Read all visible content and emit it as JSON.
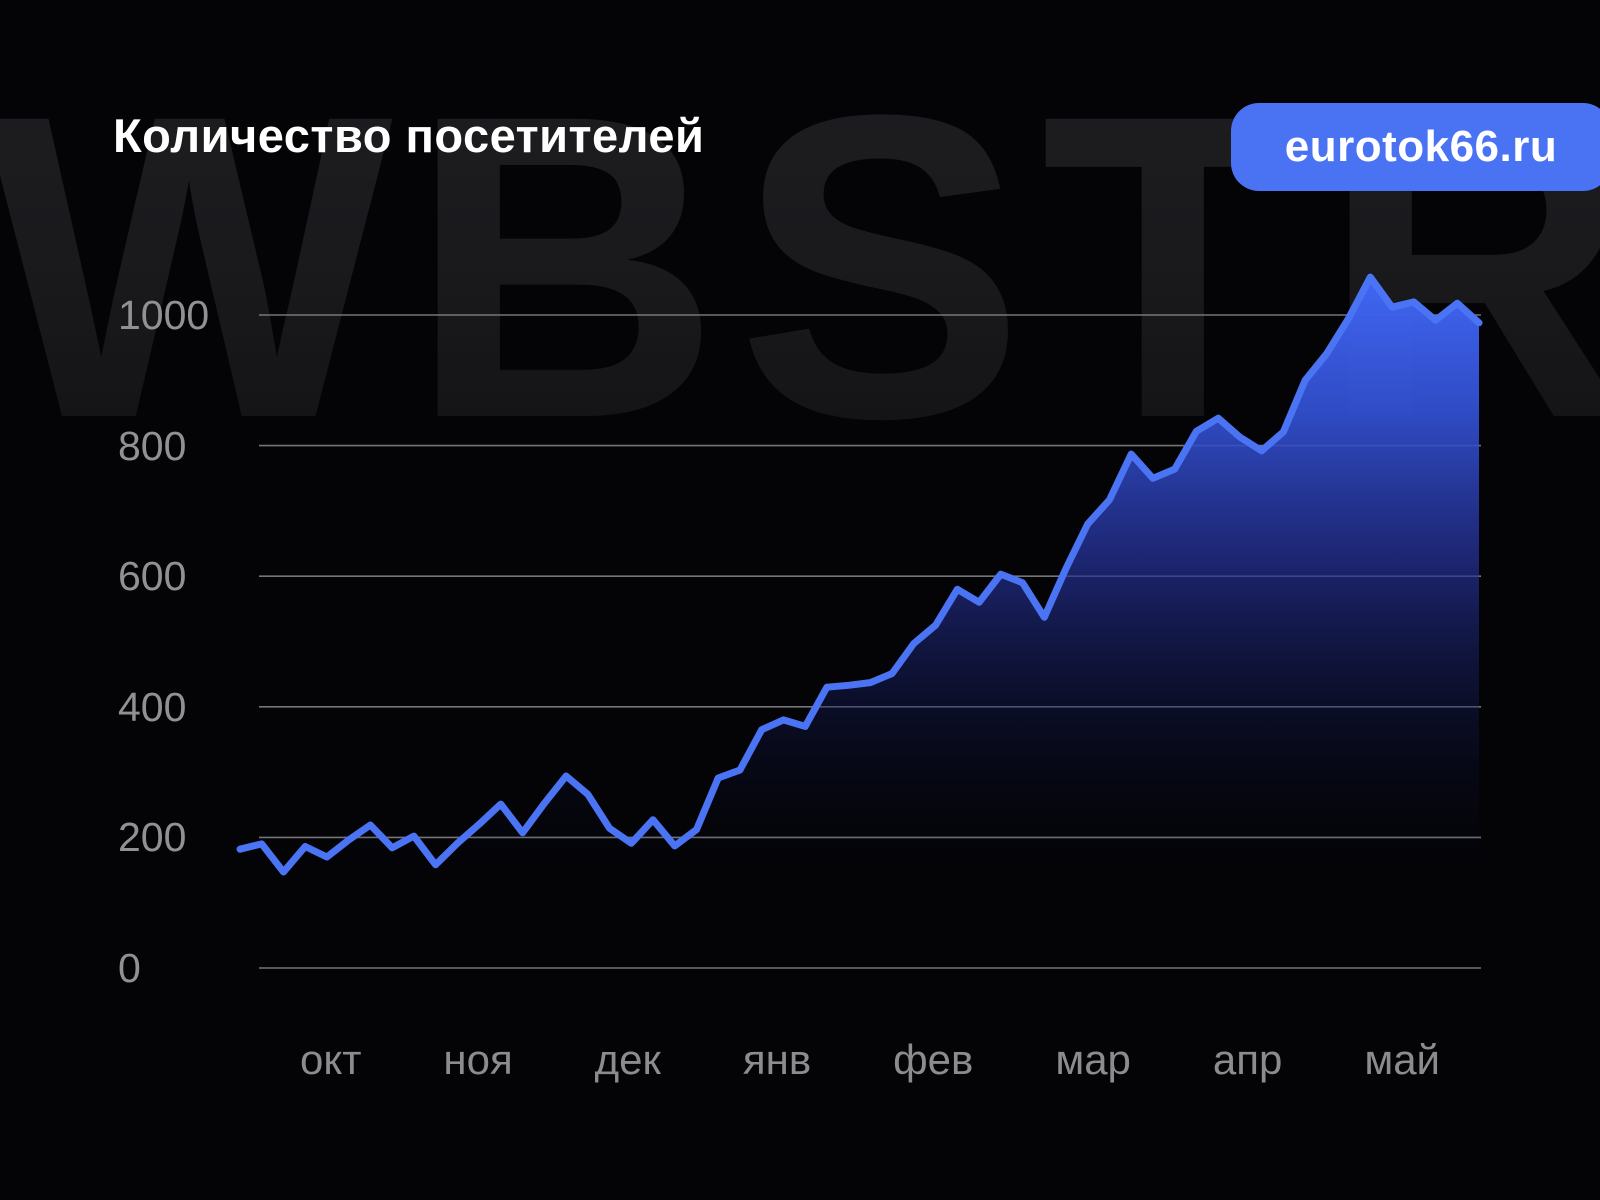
{
  "header": {
    "title": "Количество посетителей",
    "badge_label": "eurotok66.ru"
  },
  "watermark": {
    "text": "WBSTR"
  },
  "chart_data": {
    "type": "area",
    "title": "Количество посетителей",
    "series_name": "посетители",
    "x_labels": [
      "окт",
      "ноя",
      "дек",
      "янв",
      "фев",
      "мар",
      "апр",
      "май"
    ],
    "y_ticks": [
      0,
      200,
      400,
      600,
      800,
      1000
    ],
    "ylim": [
      0,
      1000
    ],
    "grid": true,
    "legend": "none",
    "values": [
      182,
      190,
      147,
      186,
      170,
      196,
      219,
      184,
      202,
      158,
      191,
      220,
      251,
      207,
      252,
      294,
      266,
      214,
      191,
      227,
      187,
      212,
      291,
      303,
      365,
      380,
      370,
      430,
      433,
      437,
      451,
      497,
      525,
      580,
      560,
      603,
      590,
      537,
      612,
      680,
      717,
      787,
      750,
      764,
      822,
      842,
      813,
      792,
      821,
      900,
      941,
      995,
      1058,
      1012,
      1020,
      992,
      1018,
      988
    ],
    "colors": {
      "line": "#4B74F5",
      "fill_top": "#4166F4",
      "grid": "#828285",
      "axis_text": "#909093",
      "badge": "#4A73F3",
      "watermark": "#19191c",
      "background": "#040406"
    }
  }
}
